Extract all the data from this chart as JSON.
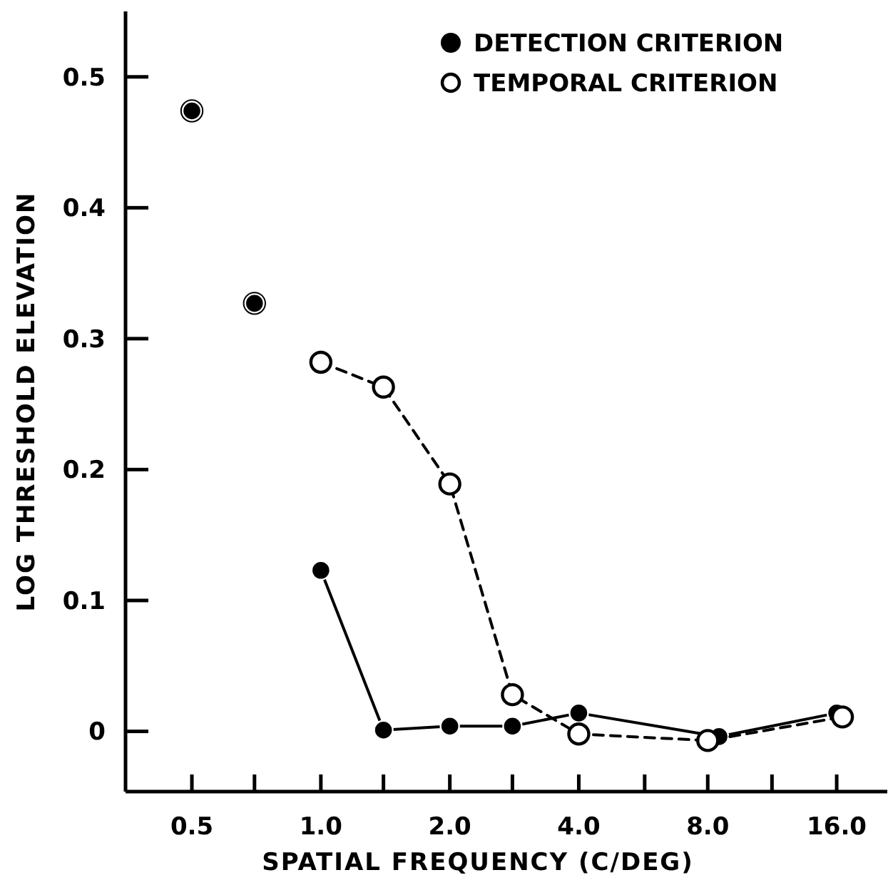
{
  "chart_data": {
    "type": "line",
    "xlabel": "SPATIAL FREQUENCY (C/DEG)",
    "ylabel": "LOG THRESHOLD ELEVATION",
    "log": "x",
    "xlim": [
      0.35,
      21
    ],
    "ylim": [
      -0.046,
      0.55
    ],
    "xticks": [
      0.5,
      {
        "value": 0.7,
        "label": null
      },
      {
        "value": 1.0,
        "label": "1.0"
      },
      {
        "value": 1.4,
        "label": null
      },
      {
        "value": 2.0,
        "label": "2.0"
      },
      {
        "value": 2.8,
        "label": null
      },
      {
        "value": 4.0,
        "label": "4.0"
      },
      {
        "value": 5.7,
        "label": null
      },
      {
        "value": 8.0,
        "label": "8.0"
      },
      {
        "value": 11.3,
        "label": null
      },
      {
        "value": 16.0,
        "label": "16.0"
      }
    ],
    "yticks": [
      0,
      0.1,
      0.2,
      0.3,
      0.4,
      0.5
    ],
    "legend": "top right",
    "grid": false,
    "series": [
      {
        "type": "scatter",
        "color": "#ffffff",
        "x": [
          0.5,
          0.7
        ],
        "values": [
          0.474,
          0.327
        ]
      },
      {
        "type": "scatter",
        "color": "#000000",
        "x": [
          0.5,
          0.7
        ],
        "values": [
          0.474,
          0.327
        ]
      },
      {
        "name": "DETECTION CRITERION",
        "line_style": "solid",
        "marker": "circle",
        "color": "#000000",
        "x": [
          1.0,
          1.4,
          2.0,
          2.8,
          4.0,
          8.5,
          16.0
        ],
        "values": [
          0.123,
          0.001,
          0.004,
          0.004,
          0.014,
          -0.004,
          0.014
        ]
      },
      {
        "name": "TEMPORAL CRITERION",
        "line_style": "dashed",
        "marker": "circle",
        "color": "#ffffff",
        "x": [
          1.0,
          1.4,
          2.0,
          2.8,
          4.0,
          8.0,
          16.5
        ],
        "values": [
          0.282,
          0.263,
          0.189,
          0.028,
          -0.002,
          -0.007,
          0.011
        ]
      }
    ]
  }
}
